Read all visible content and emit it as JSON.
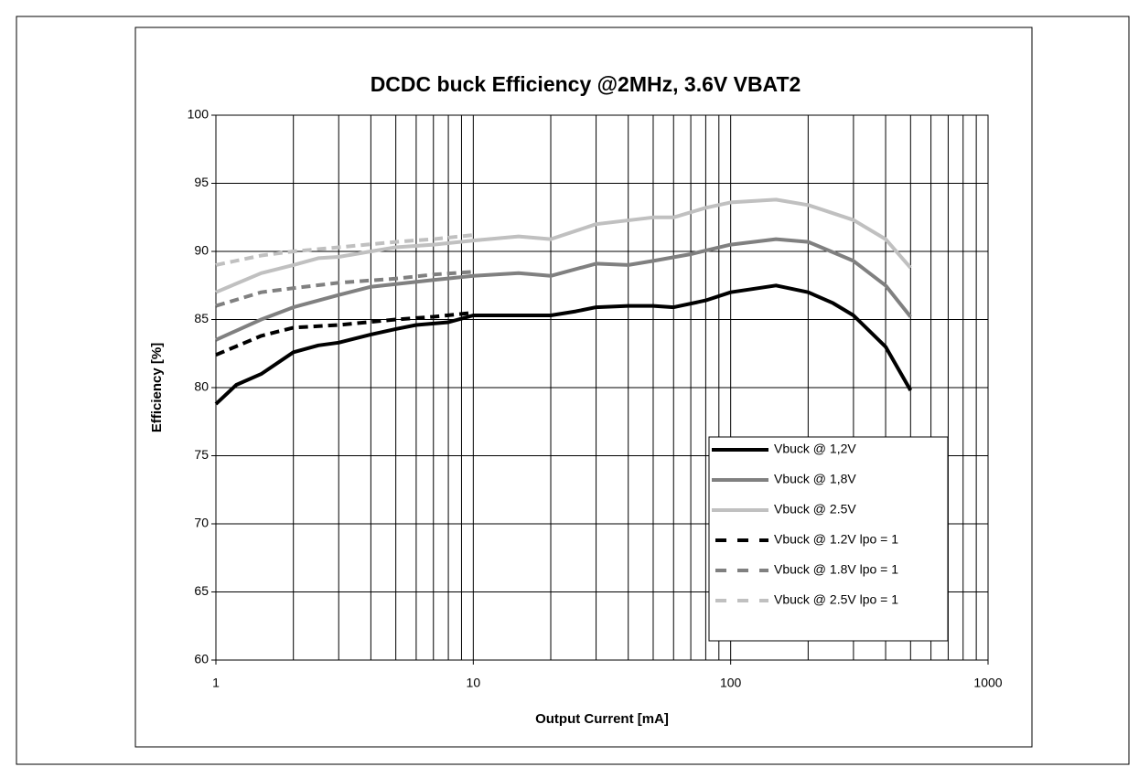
{
  "chart_data": {
    "type": "line",
    "title": "DCDC buck Efficiency @2MHz, 3.6V VBAT2",
    "xlabel": "Output Current [mA]",
    "ylabel": "Efficiency [%]",
    "xscale": "log",
    "xlim": [
      1,
      1000
    ],
    "xticks": [
      1,
      10,
      100,
      1000
    ],
    "xminor": [
      2,
      3,
      4,
      5,
      6,
      7,
      8,
      9,
      20,
      30,
      40,
      50,
      60,
      70,
      80,
      90,
      200,
      300,
      400,
      500,
      600,
      700,
      800,
      900
    ],
    "ylim": [
      60,
      100
    ],
    "yticks": [
      60,
      65,
      70,
      75,
      80,
      85,
      90,
      95,
      100
    ],
    "grid": true,
    "legend": "lower right",
    "series": [
      {
        "name": "Vbuck @ 1,2V",
        "color": "#000000",
        "dashed": false,
        "x": [
          1,
          1.2,
          1.5,
          2,
          2.5,
          3,
          4,
          5,
          6,
          8,
          10,
          15,
          20,
          25,
          30,
          40,
          50,
          60,
          80,
          100,
          150,
          200,
          250,
          300,
          400,
          500
        ],
        "values": [
          78.8,
          80.2,
          81.0,
          82.6,
          83.1,
          83.3,
          83.9,
          84.3,
          84.6,
          84.8,
          85.3,
          85.3,
          85.3,
          85.6,
          85.9,
          86.0,
          86.0,
          85.9,
          86.4,
          87.0,
          87.5,
          87.0,
          86.2,
          85.3,
          83.0,
          79.8
        ]
      },
      {
        "name": "Vbuck @ 1,8V",
        "color": "#808080",
        "dashed": false,
        "x": [
          1,
          1.5,
          2,
          3,
          4,
          5,
          7,
          10,
          15,
          20,
          30,
          40,
          50,
          70,
          100,
          150,
          200,
          300,
          400,
          500
        ],
        "values": [
          83.5,
          85.0,
          85.9,
          86.8,
          87.4,
          87.6,
          87.9,
          88.2,
          88.4,
          88.2,
          89.1,
          89.0,
          89.3,
          89.8,
          90.5,
          90.9,
          90.7,
          89.3,
          87.5,
          85.2
        ]
      },
      {
        "name": "Vbuck @ 2.5V",
        "color": "#c0c0c0",
        "dashed": false,
        "x": [
          1,
          1.5,
          2,
          2.5,
          3,
          4,
          5,
          7,
          10,
          15,
          20,
          30,
          50,
          60,
          80,
          100,
          150,
          200,
          300,
          400,
          500
        ],
        "values": [
          87.0,
          88.4,
          89.0,
          89.5,
          89.6,
          90.0,
          90.3,
          90.5,
          90.8,
          91.1,
          90.9,
          92.0,
          92.5,
          92.5,
          93.2,
          93.6,
          93.8,
          93.4,
          92.3,
          90.9,
          88.8
        ]
      },
      {
        "name": "Vbuck @ 1.2V lpo = 1",
        "color": "#000000",
        "dashed": true,
        "x": [
          1,
          1.5,
          2,
          3,
          5,
          7,
          10
        ],
        "values": [
          82.4,
          83.8,
          84.4,
          84.6,
          85.0,
          85.2,
          85.5
        ]
      },
      {
        "name": "Vbuck @ 1.8V lpo = 1",
        "color": "#808080",
        "dashed": true,
        "x": [
          1,
          1.5,
          2,
          3,
          5,
          7,
          10
        ],
        "values": [
          86.0,
          87.0,
          87.3,
          87.7,
          88.0,
          88.3,
          88.5
        ]
      },
      {
        "name": "Vbuck @ 2.5V lpo = 1",
        "color": "#c0c0c0",
        "dashed": true,
        "x": [
          1,
          1.5,
          2,
          3,
          5,
          7,
          10
        ],
        "values": [
          89.0,
          89.7,
          90.0,
          90.3,
          90.7,
          90.9,
          91.2
        ]
      }
    ]
  }
}
